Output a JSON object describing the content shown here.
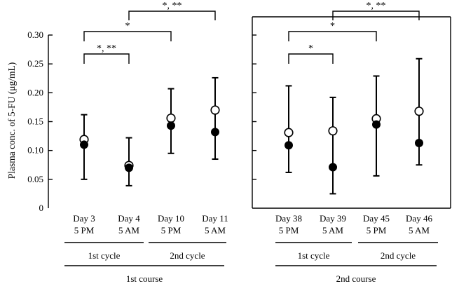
{
  "ylabel": "Plasma conc. of 5-FU (μg/mL)",
  "colors": {
    "ink": "#000000",
    "open_marker": "#ffffff"
  },
  "chart_data": [
    {
      "type": "scatter",
      "ylim": [
        0,
        0.3
      ],
      "yticks": [
        "0",
        "0.05",
        "0.10",
        "0.15",
        "0.20",
        "0.25",
        "0.30"
      ],
      "categories": [
        {
          "line1": "Day 3",
          "line2": "5 PM"
        },
        {
          "line1": "Day 4",
          "line2": "5 AM"
        },
        {
          "line1": "Day 10",
          "line2": "5 PM"
        },
        {
          "line1": "Day 11",
          "line2": "5 AM"
        }
      ],
      "series": [
        {
          "marker": "open",
          "values": [
            0.119,
            0.074,
            0.156,
            0.17
          ]
        },
        {
          "marker": "filled",
          "values": [
            0.11,
            0.07,
            0.143,
            0.132
          ]
        }
      ],
      "error_ranges": [
        [
          0.05,
          0.162
        ],
        [
          0.039,
          0.122
        ],
        [
          0.095,
          0.207
        ],
        [
          0.085,
          0.226
        ]
      ],
      "cycles": [
        "1st cycle",
        "2nd cycle"
      ],
      "course": "1st course",
      "significance": [
        {
          "from": 0,
          "to": 1,
          "label": "*, **"
        },
        {
          "from": 0,
          "to": 2,
          "label": "*"
        },
        {
          "from": 1,
          "to": 3,
          "label": "*, **"
        }
      ]
    },
    {
      "type": "scatter",
      "ylim": [
        0,
        0.3
      ],
      "yticks": [],
      "categories": [
        {
          "line1": "Day 38",
          "line2": "5 PM"
        },
        {
          "line1": "Day 39",
          "line2": "5 AM"
        },
        {
          "line1": "Day 45",
          "line2": "5 PM"
        },
        {
          "line1": "Day 46",
          "line2": "5 AM"
        }
      ],
      "series": [
        {
          "marker": "open",
          "values": [
            0.131,
            0.134,
            0.155,
            0.168
          ]
        },
        {
          "marker": "filled",
          "values": [
            0.109,
            0.071,
            0.145,
            0.113
          ]
        }
      ],
      "error_ranges": [
        [
          0.062,
          0.212
        ],
        [
          0.025,
          0.192
        ],
        [
          0.056,
          0.229
        ],
        [
          0.075,
          0.259
        ]
      ],
      "cycles": [
        "1st cycle",
        "2nd cycle"
      ],
      "course": "2nd course",
      "significance": [
        {
          "from": 0,
          "to": 1,
          "label": "*"
        },
        {
          "from": 0,
          "to": 2,
          "label": "*"
        },
        {
          "from": 1,
          "to": 3,
          "label": "*, **"
        }
      ]
    }
  ]
}
